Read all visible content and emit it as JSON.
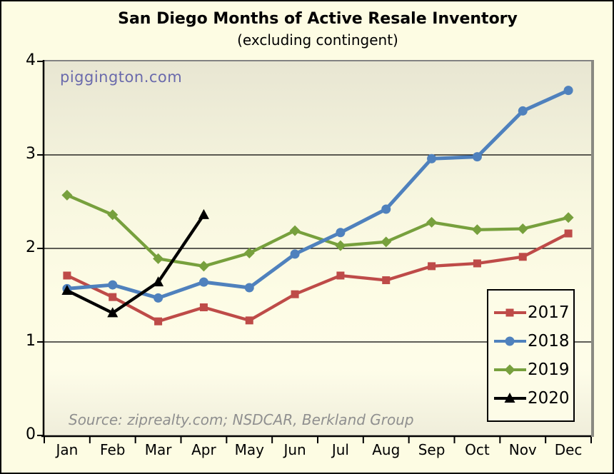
{
  "watermark": "piggington.com",
  "source": "Source: ziprealty.com; NSDCAR, Berkland Group",
  "chart_data": {
    "type": "line",
    "title": "San Diego Months of Active Resale Inventory",
    "subtitle": "(excluding contingent)",
    "xlabel": "",
    "ylabel": "",
    "ylim": [
      0,
      4
    ],
    "yticks": [
      0,
      1,
      2,
      3,
      4
    ],
    "grid": "horizontal",
    "legend_position": "inside-right",
    "categories": [
      "Jan",
      "Feb",
      "Mar",
      "Apr",
      "May",
      "Jun",
      "Jul",
      "Aug",
      "Sep",
      "Oct",
      "Nov",
      "Dec"
    ],
    "series": [
      {
        "name": "2017",
        "color": "#BE4B48",
        "marker": "square",
        "values": [
          1.71,
          1.48,
          1.22,
          1.37,
          1.23,
          1.51,
          1.71,
          1.66,
          1.81,
          1.84,
          1.91,
          2.16
        ]
      },
      {
        "name": "2018",
        "color": "#4F81BD",
        "marker": "circle",
        "values": [
          1.57,
          1.61,
          1.47,
          1.64,
          1.58,
          1.94,
          2.17,
          2.42,
          2.96,
          2.98,
          3.47,
          3.69
        ]
      },
      {
        "name": "2019",
        "color": "#77A03D",
        "marker": "diamond",
        "values": [
          2.57,
          2.36,
          1.89,
          1.81,
          1.95,
          2.19,
          2.03,
          2.07,
          2.28,
          2.2,
          2.21,
          2.33
        ]
      },
      {
        "name": "2020",
        "color": "#000000",
        "marker": "triangle",
        "values": [
          1.55,
          1.31,
          1.64,
          2.36,
          null,
          null,
          null,
          null,
          null,
          null,
          null,
          null
        ]
      }
    ]
  }
}
